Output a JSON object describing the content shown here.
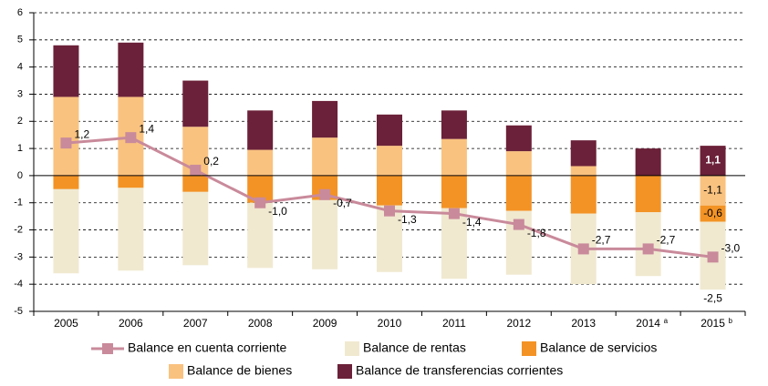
{
  "chart_data": {
    "type": "stacked-bar-line",
    "categories": [
      "2005",
      "2006",
      "2007",
      "2008",
      "2009",
      "2010",
      "2011",
      "2012",
      "2013",
      "2014",
      "2015"
    ],
    "category_notes": [
      null,
      null,
      null,
      null,
      null,
      null,
      null,
      null,
      null,
      "a",
      "b"
    ],
    "ylim": [
      -5,
      6
    ],
    "yticks": [
      -5,
      -4,
      -3,
      -2,
      -1,
      0,
      1,
      2,
      3,
      4,
      5,
      6
    ],
    "grid": true,
    "series": [
      {
        "name": "Balance de bienes",
        "color": "#f9c27f",
        "kind": "bar",
        "values": [
          2.9,
          2.9,
          1.8,
          0.95,
          1.4,
          1.1,
          1.35,
          0.9,
          0.35,
          0,
          -1.1
        ],
        "value_labels": [
          null,
          null,
          null,
          null,
          null,
          null,
          null,
          null,
          null,
          null,
          "-1,1"
        ]
      },
      {
        "name": "Balance de servicios",
        "color": "#f39325",
        "kind": "bar",
        "values": [
          -0.5,
          -0.45,
          -0.6,
          -1.0,
          -0.9,
          -1.1,
          -1.2,
          -1.3,
          -1.4,
          -1.35,
          -0.6
        ],
        "value_labels": [
          null,
          null,
          null,
          null,
          null,
          null,
          null,
          null,
          null,
          null,
          "-0,6"
        ]
      },
      {
        "name": "Balance de rentas",
        "color": "#f0e9d0",
        "kind": "bar",
        "values": [
          -3.1,
          -3.05,
          -2.7,
          -2.4,
          -2.55,
          -2.45,
          -2.6,
          -2.35,
          -2.6,
          -2.35,
          -2.5
        ],
        "value_labels": [
          null,
          null,
          null,
          null,
          null,
          null,
          null,
          null,
          null,
          null,
          "-2,5"
        ]
      },
      {
        "name": "Balance de transferencias corrientes",
        "color": "#6b2139",
        "kind": "bar",
        "values": [
          1.9,
          2.0,
          1.7,
          1.45,
          1.35,
          1.15,
          1.05,
          0.95,
          0.95,
          1.0,
          1.1
        ],
        "value_labels": [
          null,
          null,
          null,
          null,
          null,
          null,
          null,
          null,
          null,
          null,
          "1,1"
        ]
      },
      {
        "name": "Balance en cuenta corriente",
        "color": "#c98a9b",
        "kind": "line",
        "values": [
          1.2,
          1.4,
          0.2,
          -1.0,
          -0.7,
          -1.3,
          -1.4,
          -1.8,
          -2.7,
          -2.7,
          -3.0
        ],
        "value_labels": [
          "1,2",
          "1,4",
          "0,2",
          "-1,0",
          "-0,7",
          "-1,3",
          "-1,4",
          "-1,8",
          "-2,7",
          "-2,7",
          "-3,0"
        ]
      }
    ],
    "legend_order": [
      4,
      2,
      1,
      0,
      3
    ]
  }
}
